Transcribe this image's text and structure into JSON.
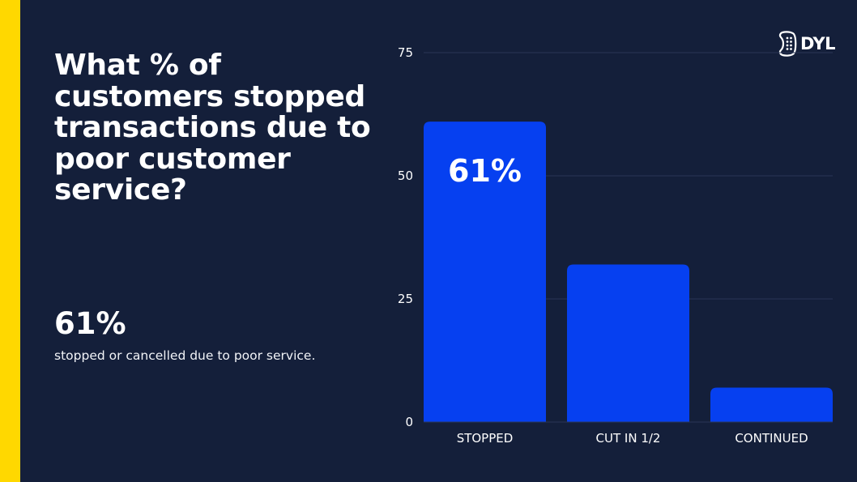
{
  "slide": {
    "question": "What % of customers stopped transactions due to poor customer service?",
    "stat_value": "61%",
    "stat_caption": "stopped or cancelled due to poor service.",
    "logo_text": "DYL",
    "accent_color": "#ffd800",
    "background_color": "#141f3a"
  },
  "chart_data": {
    "type": "bar",
    "title": "",
    "xlabel": "",
    "ylabel": "",
    "categories": [
      "STOPPED",
      "CUT IN 1/2",
      "CONTINUED"
    ],
    "values": [
      61,
      32,
      7
    ],
    "data_labels": [
      "61%",
      "",
      ""
    ],
    "ylim": [
      0,
      75
    ],
    "yticks": [
      0,
      25,
      50,
      75
    ],
    "grid": true,
    "legend": "none",
    "bar_color": "#0640f0",
    "grid_color": "#2a3656"
  }
}
